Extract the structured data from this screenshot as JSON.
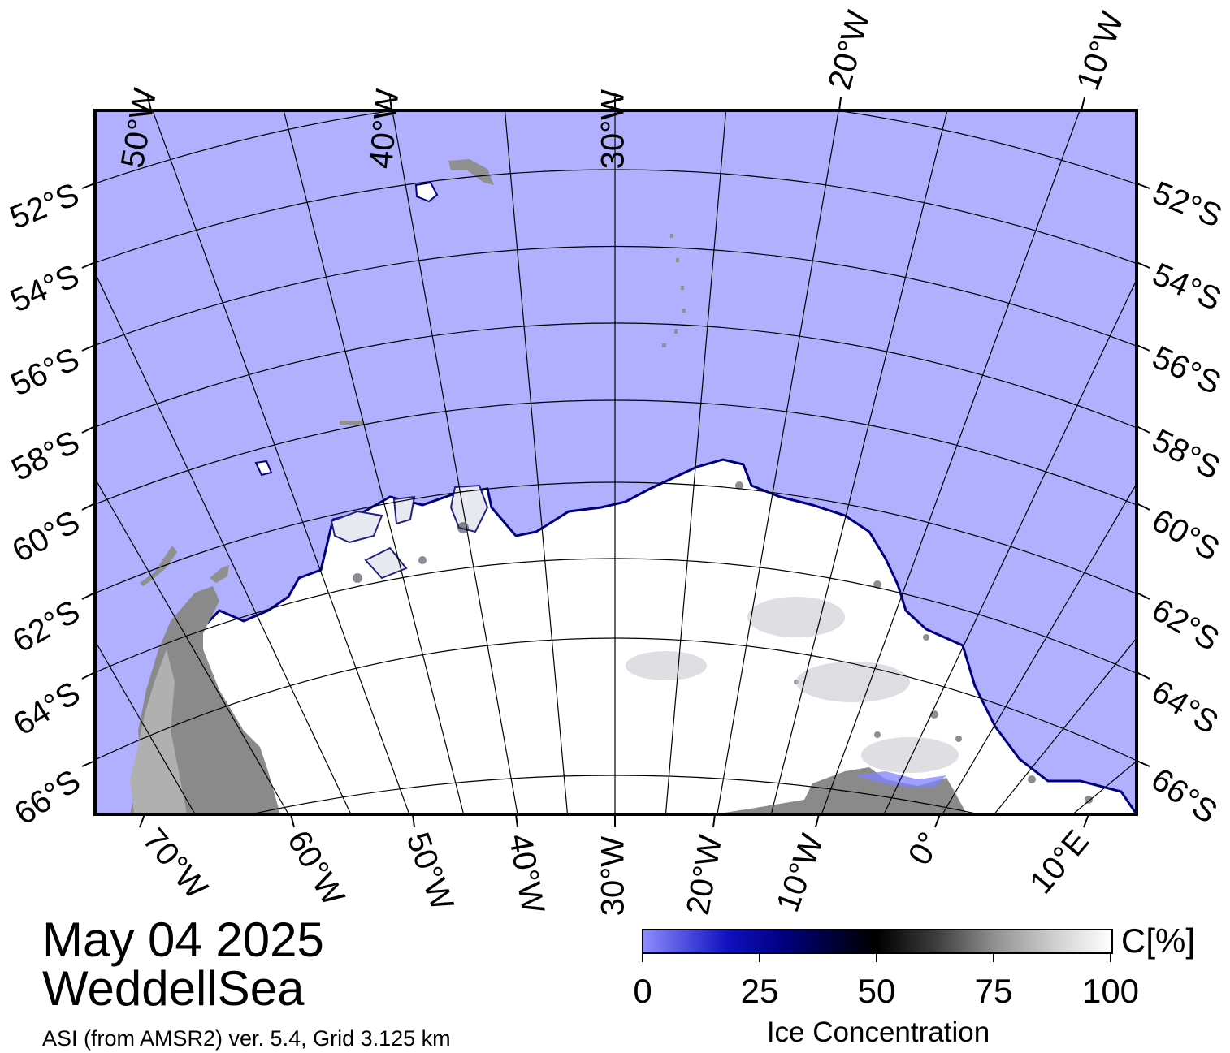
{
  "map": {
    "date": "May 04 2025",
    "region": "WeddellSea",
    "product": "ASI (from AMSR2) ver. 5.4,  Grid 3.125 km",
    "colors": {
      "open_water": "#b0b0ff",
      "ice_full": "#ffffff",
      "land": "#8a8a8a",
      "ice_shelf": "#b0b0b0",
      "ice_edge": "#000080",
      "graticule": "#000000"
    },
    "top_longitude_labels": [
      "50°W",
      "40°W",
      "30°W",
      "20°W",
      "10°W"
    ],
    "bottom_longitude_labels": [
      "70°W",
      "60°W",
      "50°W",
      "40°W",
      "30°W",
      "20°W",
      "10°W",
      "0°",
      "10°E"
    ],
    "left_latitude_labels": [
      "52°S",
      "54°S",
      "56°S",
      "58°S",
      "60°S",
      "62°S",
      "64°S",
      "66°S"
    ],
    "right_latitude_labels": [
      "52°S",
      "54°S",
      "56°S",
      "58°S",
      "60°S",
      "62°S",
      "64°S",
      "66°S"
    ]
  },
  "colorbar": {
    "ticks": [
      "0",
      "25",
      "50",
      "75",
      "100"
    ],
    "tick_values": [
      0,
      25,
      50,
      75,
      100
    ],
    "unit": "C[%]",
    "label": "Ice Concentration"
  }
}
